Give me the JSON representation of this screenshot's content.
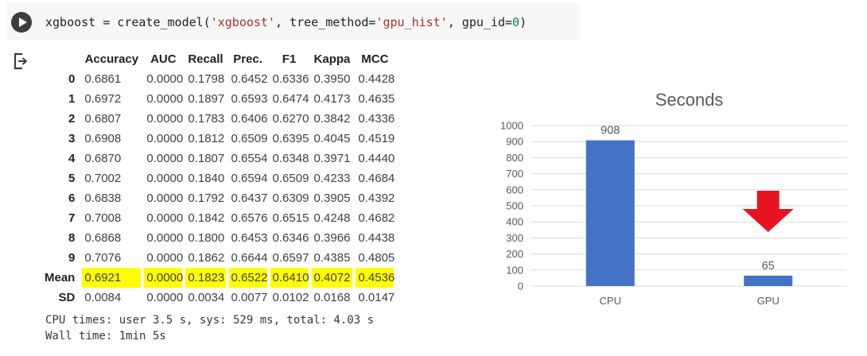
{
  "code_cell": {
    "segments": [
      {
        "text": "xgboost = create_model(",
        "color": "#212121"
      },
      {
        "text": "'xgboost'",
        "color": "#a5342d"
      },
      {
        "text": ", tree_method=",
        "color": "#212121"
      },
      {
        "text": "'gpu_hist'",
        "color": "#a5342d"
      },
      {
        "text": ", gpu_id=",
        "color": "#212121"
      },
      {
        "text": "0",
        "color": "#098658"
      },
      {
        "text": ")",
        "color": "#212121"
      }
    ],
    "background": "#f7f7f7"
  },
  "output": {
    "table": {
      "index_header": "",
      "columns": [
        "Accuracy",
        "AUC",
        "Recall",
        "Prec.",
        "F1",
        "Kappa",
        "MCC"
      ],
      "rows": [
        {
          "index": "0",
          "values": [
            "0.6861",
            "0.0000",
            "0.1798",
            "0.6452",
            "0.6336",
            "0.3950",
            "0.4428"
          ],
          "highlight": false
        },
        {
          "index": "1",
          "values": [
            "0.6972",
            "0.0000",
            "0.1897",
            "0.6593",
            "0.6474",
            "0.4173",
            "0.4635"
          ],
          "highlight": false
        },
        {
          "index": "2",
          "values": [
            "0.6807",
            "0.0000",
            "0.1783",
            "0.6406",
            "0.6270",
            "0.3842",
            "0.4336"
          ],
          "highlight": false
        },
        {
          "index": "3",
          "values": [
            "0.6908",
            "0.0000",
            "0.1812",
            "0.6509",
            "0.6395",
            "0.4045",
            "0.4519"
          ],
          "highlight": false
        },
        {
          "index": "4",
          "values": [
            "0.6870",
            "0.0000",
            "0.1807",
            "0.6554",
            "0.6348",
            "0.3971",
            "0.4440"
          ],
          "highlight": false
        },
        {
          "index": "5",
          "values": [
            "0.7002",
            "0.0000",
            "0.1840",
            "0.6594",
            "0.6509",
            "0.4233",
            "0.4684"
          ],
          "highlight": false
        },
        {
          "index": "6",
          "values": [
            "0.6838",
            "0.0000",
            "0.1792",
            "0.6437",
            "0.6309",
            "0.3905",
            "0.4392"
          ],
          "highlight": false
        },
        {
          "index": "7",
          "values": [
            "0.7008",
            "0.0000",
            "0.1842",
            "0.6576",
            "0.6515",
            "0.4248",
            "0.4682"
          ],
          "highlight": false
        },
        {
          "index": "8",
          "values": [
            "0.6868",
            "0.0000",
            "0.1800",
            "0.6453",
            "0.6346",
            "0.3966",
            "0.4438"
          ],
          "highlight": false
        },
        {
          "index": "9",
          "values": [
            "0.7076",
            "0.0000",
            "0.1862",
            "0.6644",
            "0.6597",
            "0.4385",
            "0.4805"
          ],
          "highlight": false
        },
        {
          "index": "Mean",
          "values": [
            "0.6921",
            "0.0000",
            "0.1823",
            "0.6522",
            "0.6410",
            "0.4072",
            "0.4536"
          ],
          "highlight": true
        },
        {
          "index": "SD",
          "values": [
            "0.0084",
            "0.0000",
            "0.0034",
            "0.0077",
            "0.0102",
            "0.0168",
            "0.0147"
          ],
          "highlight": false
        }
      ],
      "highlight_color": "#ffff00"
    },
    "cpu_times_line": "CPU times: user 3.5 s, sys: 529 ms, total: 4.03 s",
    "wall_time_line": "Wall time: 1min 5s"
  },
  "chart_data": {
    "type": "bar",
    "title": "Seconds",
    "categories": [
      "CPU",
      "GPU"
    ],
    "values": [
      908,
      65
    ],
    "value_labels": [
      "908",
      "65"
    ],
    "xlabel": "",
    "ylabel": "",
    "ylim": [
      0,
      1000
    ],
    "ytick_step": 100,
    "grid": true,
    "legend": false,
    "bar_color": "#4472c4",
    "title_color": "#595959",
    "axis_label_color": "#595959",
    "gridline_color": "#d9d9d9",
    "annotation": {
      "shape": "down-arrow",
      "color": "#e61423",
      "over_category": "GPU"
    }
  }
}
